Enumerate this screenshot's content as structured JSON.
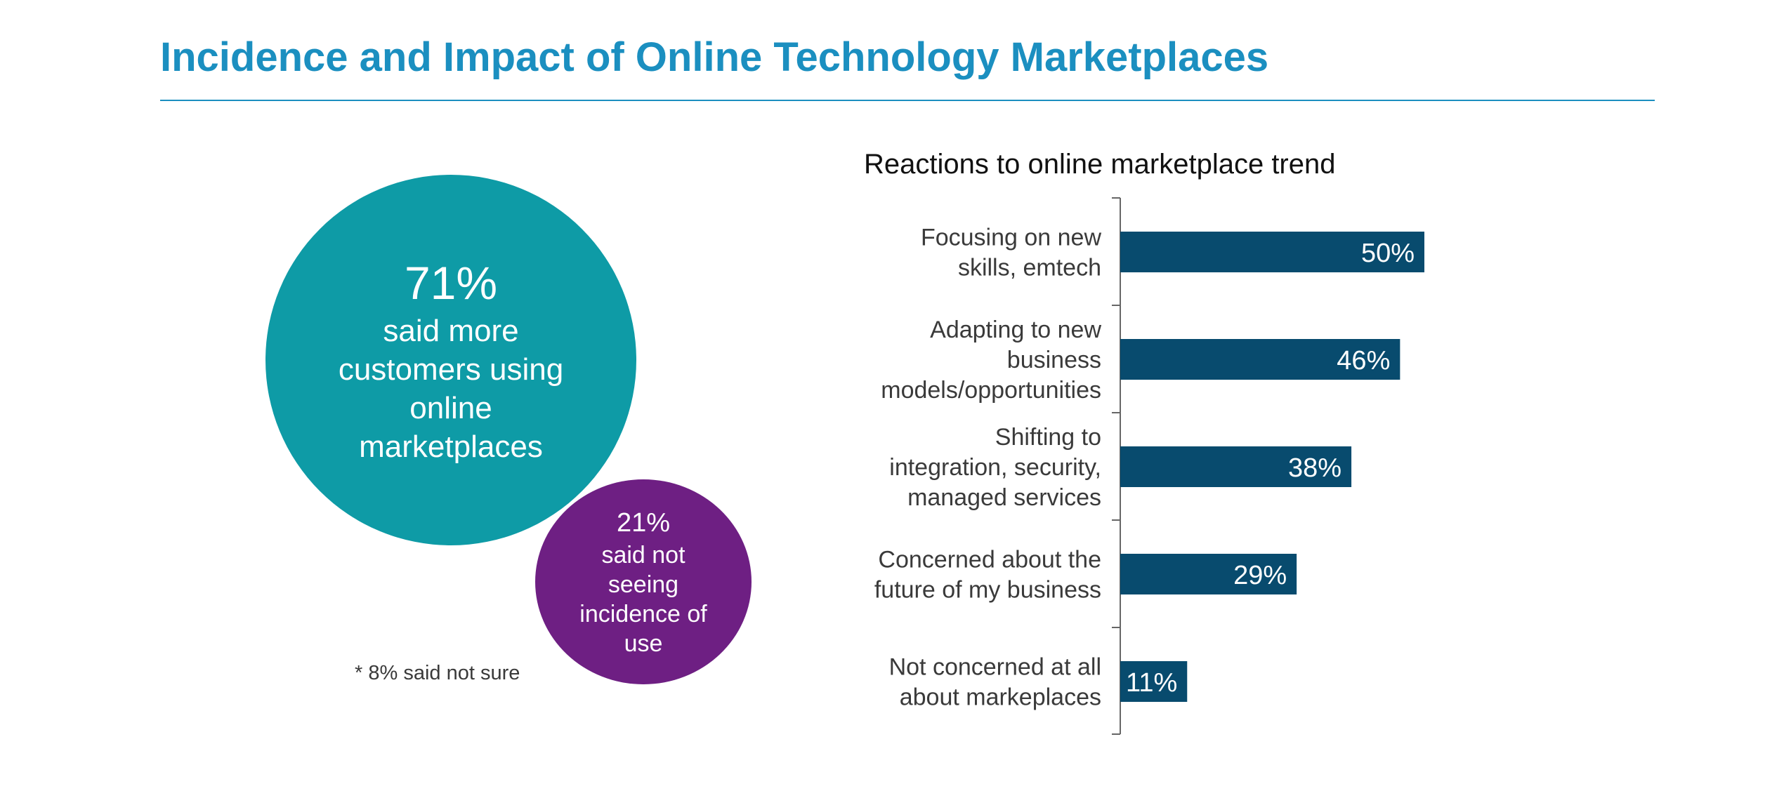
{
  "title": "Incidence and Impact of Online Technology Marketplaces",
  "colors": {
    "title": "#1b8fc0",
    "bubble_primary": "#0e9ba6",
    "bubble_secondary": "#6e1f83",
    "bar": "#084b6e"
  },
  "bubbles": {
    "primary": {
      "value": "71%",
      "text": "said more customers using online marketplaces"
    },
    "secondary": {
      "value": "21%",
      "text": "said not seeing incidence of use"
    },
    "footnote": "* 8% said not sure"
  },
  "chart_data": {
    "type": "bar",
    "orientation": "horizontal",
    "title": "Reactions to online marketplace trend",
    "categories": [
      [
        "Focusing on new",
        "skills, emtech"
      ],
      [
        "Adapting to new",
        "business",
        "models/opportunities"
      ],
      [
        "Shifting to",
        "integration, security,",
        "managed services"
      ],
      [
        "Concerned about the",
        "future of my business"
      ],
      [
        "Not concerned at all",
        "about markeplaces"
      ]
    ],
    "values": [
      50,
      46,
      38,
      29,
      11
    ],
    "value_labels": [
      "50%",
      "46%",
      "38%",
      "29%",
      "11%"
    ],
    "xlim": [
      0,
      100
    ],
    "grid": false,
    "legend": "none"
  }
}
